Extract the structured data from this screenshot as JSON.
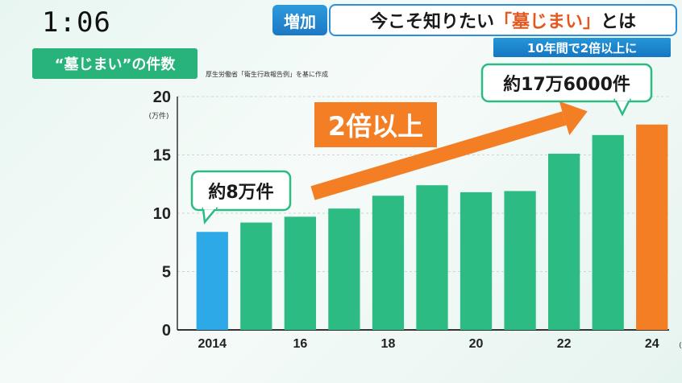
{
  "overlay": {
    "clock": "1:06",
    "topic_tag": "増加",
    "headline_before": "今こそ知りたい",
    "headline_highlight": "「墓じまい」",
    "headline_after": "とは",
    "headline_sub": "10年間で2倍以上に",
    "chart_subtitle": "“墓じまい”の件数",
    "source_note": "厚生労働省「衛生行政報告例」を基に作成"
  },
  "colors": {
    "bar_first": "#2ea9e8",
    "bar_middle": "#2dbb84",
    "bar_last": "#f37e24",
    "arrow": "#f37e24",
    "label_border": "#2dbb84"
  },
  "chart_data": {
    "type": "bar",
    "x_label_unit": "(年度)",
    "y_label_unit": "(万件)",
    "ylim": [
      0,
      20
    ],
    "yticks": [
      0,
      5,
      10,
      15,
      20
    ],
    "categories": [
      "2014",
      "",
      "16",
      "",
      "18",
      "",
      "20",
      "",
      "22",
      "",
      "24"
    ],
    "values": [
      8.4,
      9.2,
      9.7,
      10.4,
      11.5,
      12.4,
      11.8,
      11.9,
      15.1,
      16.7,
      17.6
    ],
    "grid": true,
    "annotations": {
      "first": "約8万件",
      "last": "約17万6000件",
      "arrow_text": "2倍以上"
    }
  }
}
